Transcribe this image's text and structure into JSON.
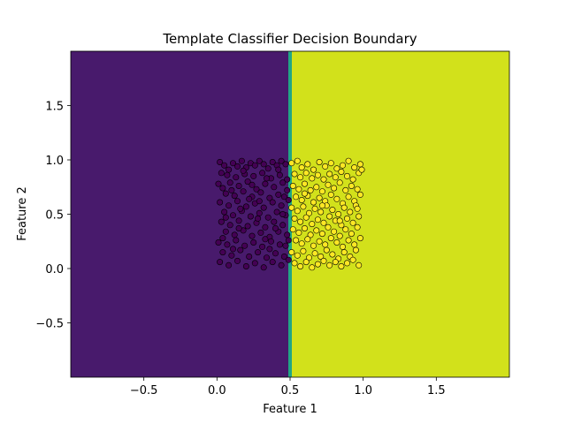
{
  "chart_data": {
    "type": "scatter",
    "title": "Template Classifier Decision Boundary",
    "xlabel": "Feature 1",
    "ylabel": "Feature 2",
    "xlim": [
      -1.0,
      2.0
    ],
    "ylim": [
      -1.0,
      2.0
    ],
    "xticks": [
      -0.5,
      0.0,
      0.5,
      1.0,
      1.5
    ],
    "xtick_labels": [
      "−0.5",
      "0.0",
      "0.5",
      "1.0",
      "1.5"
    ],
    "yticks": [
      -0.5,
      0.0,
      0.5,
      1.0,
      1.5
    ],
    "ytick_labels": [
      "−0.5",
      "0.0",
      "0.5",
      "1.0",
      "1.5"
    ],
    "grid": false,
    "decision_boundary": {
      "orientation": "vertical",
      "x": 0.5,
      "class_0_region": "x < 0.5",
      "class_1_region": "x >= 0.5"
    },
    "series": [
      {
        "class": 0,
        "color": "#440154",
        "points": [
          [
            0.02,
            0.98
          ],
          [
            0.05,
            0.95
          ],
          [
            0.03,
            0.88
          ],
          [
            0.08,
            0.91
          ],
          [
            0.11,
            0.97
          ],
          [
            0.14,
            0.94
          ],
          [
            0.17,
            0.99
          ],
          [
            0.2,
            0.93
          ],
          [
            0.23,
            0.97
          ],
          [
            0.26,
            0.95
          ],
          [
            0.29,
            0.99
          ],
          [
            0.32,
            0.96
          ],
          [
            0.35,
            0.92
          ],
          [
            0.38,
            0.98
          ],
          [
            0.41,
            0.95
          ],
          [
            0.44,
            0.99
          ],
          [
            0.47,
            0.96
          ],
          [
            0.07,
            0.86
          ],
          [
            0.13,
            0.84
          ],
          [
            0.19,
            0.87
          ],
          [
            0.25,
            0.85
          ],
          [
            0.31,
            0.88
          ],
          [
            0.37,
            0.83
          ],
          [
            0.43,
            0.86
          ],
          [
            0.48,
            0.82
          ],
          [
            0.01,
            0.78
          ],
          [
            0.04,
            0.74
          ],
          [
            0.09,
            0.79
          ],
          [
            0.15,
            0.76
          ],
          [
            0.21,
            0.8
          ],
          [
            0.27,
            0.73
          ],
          [
            0.33,
            0.78
          ],
          [
            0.39,
            0.75
          ],
          [
            0.45,
            0.79
          ],
          [
            0.06,
            0.69
          ],
          [
            0.12,
            0.67
          ],
          [
            0.18,
            0.71
          ],
          [
            0.24,
            0.66
          ],
          [
            0.3,
            0.7
          ],
          [
            0.36,
            0.65
          ],
          [
            0.42,
            0.68
          ],
          [
            0.48,
            0.72
          ],
          [
            0.02,
            0.61
          ],
          [
            0.08,
            0.58
          ],
          [
            0.14,
            0.62
          ],
          [
            0.2,
            0.57
          ],
          [
            0.26,
            0.6
          ],
          [
            0.32,
            0.56
          ],
          [
            0.38,
            0.61
          ],
          [
            0.44,
            0.58
          ],
          [
            0.49,
            0.63
          ],
          [
            0.05,
            0.52
          ],
          [
            0.11,
            0.49
          ],
          [
            0.17,
            0.53
          ],
          [
            0.23,
            0.48
          ],
          [
            0.29,
            0.51
          ],
          [
            0.35,
            0.47
          ],
          [
            0.41,
            0.52
          ],
          [
            0.47,
            0.49
          ],
          [
            0.03,
            0.43
          ],
          [
            0.09,
            0.4
          ],
          [
            0.15,
            0.44
          ],
          [
            0.21,
            0.39
          ],
          [
            0.27,
            0.42
          ],
          [
            0.33,
            0.38
          ],
          [
            0.39,
            0.43
          ],
          [
            0.45,
            0.4
          ],
          [
            0.06,
            0.34
          ],
          [
            0.12,
            0.31
          ],
          [
            0.18,
            0.35
          ],
          [
            0.24,
            0.3
          ],
          [
            0.3,
            0.33
          ],
          [
            0.36,
            0.29
          ],
          [
            0.42,
            0.34
          ],
          [
            0.48,
            0.31
          ],
          [
            0.01,
            0.24
          ],
          [
            0.07,
            0.22
          ],
          [
            0.13,
            0.26
          ],
          [
            0.19,
            0.21
          ],
          [
            0.25,
            0.24
          ],
          [
            0.31,
            0.2
          ],
          [
            0.37,
            0.25
          ],
          [
            0.43,
            0.22
          ],
          [
            0.49,
            0.26
          ],
          [
            0.04,
            0.15
          ],
          [
            0.1,
            0.12
          ],
          [
            0.16,
            0.17
          ],
          [
            0.22,
            0.11
          ],
          [
            0.28,
            0.15
          ],
          [
            0.34,
            0.1
          ],
          [
            0.4,
            0.14
          ],
          [
            0.46,
            0.11
          ],
          [
            0.02,
            0.06
          ],
          [
            0.08,
            0.03
          ],
          [
            0.14,
            0.07
          ],
          [
            0.2,
            0.02
          ],
          [
            0.26,
            0.05
          ],
          [
            0.32,
            0.01
          ],
          [
            0.38,
            0.06
          ],
          [
            0.44,
            0.03
          ],
          [
            0.49,
            0.08
          ],
          [
            0.1,
            0.72
          ],
          [
            0.16,
            0.55
          ],
          [
            0.22,
            0.64
          ],
          [
            0.28,
            0.46
          ],
          [
            0.34,
            0.83
          ],
          [
            0.4,
            0.37
          ],
          [
            0.46,
            0.66
          ],
          [
            0.04,
            0.28
          ],
          [
            0.18,
            0.9
          ],
          [
            0.36,
            0.18
          ],
          [
            0.45,
            0.5
          ],
          [
            0.11,
            0.18
          ],
          [
            0.29,
            0.62
          ],
          [
            0.47,
            0.21
          ],
          [
            0.06,
            0.47
          ],
          [
            0.24,
            0.77
          ],
          [
            0.42,
            0.91
          ],
          [
            0.33,
            0.27
          ],
          [
            0.15,
            0.37
          ]
        ]
      },
      {
        "class": 1,
        "color": "#fde725",
        "points": [
          [
            0.51,
            0.97
          ],
          [
            0.55,
            0.99
          ],
          [
            0.58,
            0.93
          ],
          [
            0.62,
            0.96
          ],
          [
            0.66,
            0.91
          ],
          [
            0.7,
            0.98
          ],
          [
            0.74,
            0.94
          ],
          [
            0.78,
            0.97
          ],
          [
            0.82,
            0.92
          ],
          [
            0.86,
            0.95
          ],
          [
            0.9,
            0.99
          ],
          [
            0.94,
            0.93
          ],
          [
            0.98,
            0.96
          ],
          [
            0.53,
            0.87
          ],
          [
            0.57,
            0.84
          ],
          [
            0.61,
            0.88
          ],
          [
            0.65,
            0.83
          ],
          [
            0.69,
            0.86
          ],
          [
            0.73,
            0.82
          ],
          [
            0.77,
            0.87
          ],
          [
            0.81,
            0.84
          ],
          [
            0.85,
            0.89
          ],
          [
            0.89,
            0.85
          ],
          [
            0.93,
            0.82
          ],
          [
            0.97,
            0.88
          ],
          [
            0.52,
            0.76
          ],
          [
            0.56,
            0.73
          ],
          [
            0.6,
            0.78
          ],
          [
            0.64,
            0.72
          ],
          [
            0.68,
            0.75
          ],
          [
            0.72,
            0.71
          ],
          [
            0.76,
            0.77
          ],
          [
            0.8,
            0.74
          ],
          [
            0.84,
            0.79
          ],
          [
            0.88,
            0.72
          ],
          [
            0.92,
            0.76
          ],
          [
            0.96,
            0.73
          ],
          [
            0.54,
            0.66
          ],
          [
            0.58,
            0.63
          ],
          [
            0.62,
            0.67
          ],
          [
            0.66,
            0.61
          ],
          [
            0.7,
            0.65
          ],
          [
            0.74,
            0.62
          ],
          [
            0.78,
            0.68
          ],
          [
            0.82,
            0.64
          ],
          [
            0.86,
            0.6
          ],
          [
            0.9,
            0.66
          ],
          [
            0.94,
            0.62
          ],
          [
            0.98,
            0.68
          ],
          [
            0.51,
            0.56
          ],
          [
            0.55,
            0.53
          ],
          [
            0.59,
            0.57
          ],
          [
            0.63,
            0.51
          ],
          [
            0.67,
            0.55
          ],
          [
            0.71,
            0.52
          ],
          [
            0.75,
            0.58
          ],
          [
            0.79,
            0.54
          ],
          [
            0.83,
            0.5
          ],
          [
            0.87,
            0.56
          ],
          [
            0.91,
            0.52
          ],
          [
            0.95,
            0.58
          ],
          [
            0.53,
            0.46
          ],
          [
            0.57,
            0.43
          ],
          [
            0.61,
            0.47
          ],
          [
            0.65,
            0.41
          ],
          [
            0.69,
            0.45
          ],
          [
            0.73,
            0.42
          ],
          [
            0.77,
            0.48
          ],
          [
            0.81,
            0.44
          ],
          [
            0.85,
            0.4
          ],
          [
            0.89,
            0.46
          ],
          [
            0.93,
            0.42
          ],
          [
            0.97,
            0.48
          ],
          [
            0.52,
            0.36
          ],
          [
            0.56,
            0.33
          ],
          [
            0.6,
            0.37
          ],
          [
            0.64,
            0.31
          ],
          [
            0.68,
            0.35
          ],
          [
            0.72,
            0.32
          ],
          [
            0.76,
            0.38
          ],
          [
            0.8,
            0.34
          ],
          [
            0.84,
            0.3
          ],
          [
            0.88,
            0.36
          ],
          [
            0.92,
            0.32
          ],
          [
            0.96,
            0.38
          ],
          [
            0.54,
            0.26
          ],
          [
            0.58,
            0.23
          ],
          [
            0.62,
            0.27
          ],
          [
            0.66,
            0.21
          ],
          [
            0.7,
            0.25
          ],
          [
            0.74,
            0.22
          ],
          [
            0.78,
            0.28
          ],
          [
            0.82,
            0.24
          ],
          [
            0.86,
            0.2
          ],
          [
            0.9,
            0.26
          ],
          [
            0.94,
            0.22
          ],
          [
            0.98,
            0.28
          ],
          [
            0.51,
            0.15
          ],
          [
            0.55,
            0.12
          ],
          [
            0.59,
            0.16
          ],
          [
            0.63,
            0.1
          ],
          [
            0.67,
            0.14
          ],
          [
            0.71,
            0.11
          ],
          [
            0.75,
            0.17
          ],
          [
            0.79,
            0.13
          ],
          [
            0.83,
            0.09
          ],
          [
            0.87,
            0.15
          ],
          [
            0.91,
            0.11
          ],
          [
            0.95,
            0.17
          ],
          [
            0.53,
            0.05
          ],
          [
            0.57,
            0.02
          ],
          [
            0.61,
            0.06
          ],
          [
            0.65,
            0.01
          ],
          [
            0.69,
            0.04
          ],
          [
            0.73,
            0.07
          ],
          [
            0.77,
            0.03
          ],
          [
            0.81,
            0.06
          ],
          [
            0.85,
            0.02
          ],
          [
            0.89,
            0.05
          ],
          [
            0.93,
            0.08
          ],
          [
            0.97,
            0.03
          ],
          [
            0.99,
            0.91
          ],
          [
            0.6,
            0.69
          ],
          [
            0.72,
            0.58
          ],
          [
            0.84,
            0.44
          ],
          [
            0.96,
            0.55
          ]
        ]
      }
    ],
    "region_colors": {
      "class_0": "#481a6c",
      "class_1": "#d2e11b",
      "boundary": "#21a685"
    }
  }
}
